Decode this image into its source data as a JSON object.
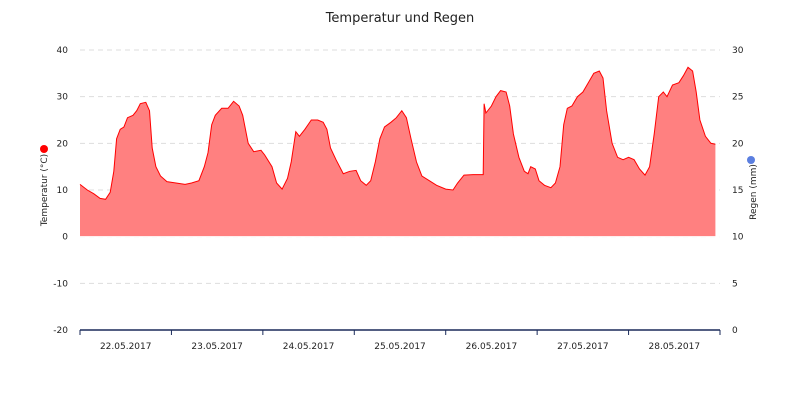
{
  "chart_data": {
    "type": "area",
    "title": "Temperatur und Regen",
    "y_left": {
      "label": "Temperatur (°C)",
      "ticks": [
        "-20",
        "-10",
        "0",
        "10",
        "20",
        "30",
        "40"
      ],
      "range": [
        -20,
        40
      ],
      "marker_color": "#ff0000"
    },
    "y_right": {
      "label": "Regen (mm)",
      "ticks": [
        "0",
        "5",
        "10",
        "15",
        "20",
        "25",
        "30"
      ],
      "range": [
        0,
        30
      ],
      "marker_color": "#5b7fe0"
    },
    "x": {
      "range": [
        0,
        7
      ],
      "labels": [
        "22.05.2017",
        "23.05.2017",
        "24.05.2017",
        "25.05.2017",
        "26.05.2017",
        "27.05.2017",
        "28.05.2017"
      ]
    },
    "series": [
      {
        "color": "#ff0000",
        "fill": "#ff8080",
        "points": [
          [
            0.0,
            11.2
          ],
          [
            0.08,
            10.0
          ],
          [
            0.15,
            9.2
          ],
          [
            0.22,
            8.2
          ],
          [
            0.28,
            8.0
          ],
          [
            0.33,
            9.5
          ],
          [
            0.37,
            14
          ],
          [
            0.4,
            21
          ],
          [
            0.44,
            23
          ],
          [
            0.48,
            23.5
          ],
          [
            0.52,
            25.5
          ],
          [
            0.58,
            26
          ],
          [
            0.62,
            27
          ],
          [
            0.66,
            28.5
          ],
          [
            0.72,
            28.8
          ],
          [
            0.76,
            27
          ],
          [
            0.79,
            19
          ],
          [
            0.83,
            15
          ],
          [
            0.88,
            13
          ],
          [
            0.95,
            11.8
          ],
          [
            1.05,
            11.5
          ],
          [
            1.15,
            11.2
          ],
          [
            1.22,
            11.5
          ],
          [
            1.3,
            12
          ],
          [
            1.36,
            15
          ],
          [
            1.4,
            18
          ],
          [
            1.44,
            24
          ],
          [
            1.48,
            26
          ],
          [
            1.55,
            27.5
          ],
          [
            1.62,
            27.5
          ],
          [
            1.68,
            29
          ],
          [
            1.74,
            28
          ],
          [
            1.78,
            26
          ],
          [
            1.84,
            20
          ],
          [
            1.9,
            18.2
          ],
          [
            1.98,
            18.5
          ],
          [
            2.02,
            17.5
          ],
          [
            2.1,
            15
          ],
          [
            2.15,
            11.5
          ],
          [
            2.21,
            10.2
          ],
          [
            2.27,
            12.5
          ],
          [
            2.31,
            16
          ],
          [
            2.36,
            22.5
          ],
          [
            2.4,
            21.5
          ],
          [
            2.46,
            23
          ],
          [
            2.53,
            25
          ],
          [
            2.6,
            25
          ],
          [
            2.66,
            24.5
          ],
          [
            2.7,
            23
          ],
          [
            2.74,
            19
          ],
          [
            2.8,
            16.5
          ],
          [
            2.88,
            13.5
          ],
          [
            2.95,
            14
          ],
          [
            3.02,
            14.2
          ],
          [
            3.07,
            12
          ],
          [
            3.13,
            11
          ],
          [
            3.18,
            12
          ],
          [
            3.23,
            16
          ],
          [
            3.28,
            21
          ],
          [
            3.33,
            23.5
          ],
          [
            3.4,
            24.5
          ],
          [
            3.46,
            25.5
          ],
          [
            3.52,
            27
          ],
          [
            3.57,
            25.5
          ],
          [
            3.62,
            21
          ],
          [
            3.68,
            16
          ],
          [
            3.74,
            13
          ],
          [
            3.82,
            12
          ],
          [
            3.9,
            11
          ],
          [
            4.0,
            10.2
          ],
          [
            4.08,
            10.0
          ],
          [
            4.13,
            11.5
          ],
          [
            4.2,
            13.2
          ],
          [
            4.3,
            13.3
          ],
          [
            4.41,
            13.3
          ],
          [
            4.42,
            28.5
          ],
          [
            4.44,
            26.5
          ],
          [
            4.5,
            28
          ],
          [
            4.55,
            30
          ],
          [
            4.6,
            31.3
          ],
          [
            4.66,
            31
          ],
          [
            4.7,
            28
          ],
          [
            4.74,
            22
          ],
          [
            4.8,
            17
          ],
          [
            4.86,
            14
          ],
          [
            4.9,
            13.5
          ],
          [
            4.93,
            15
          ],
          [
            4.98,
            14.5
          ],
          [
            5.02,
            12
          ],
          [
            5.08,
            11
          ],
          [
            5.15,
            10.5
          ],
          [
            5.2,
            11.5
          ],
          [
            5.25,
            15
          ],
          [
            5.29,
            24
          ],
          [
            5.33,
            27.5
          ],
          [
            5.38,
            28
          ],
          [
            5.44,
            30
          ],
          [
            5.5,
            31
          ],
          [
            5.56,
            33
          ],
          [
            5.62,
            35
          ],
          [
            5.68,
            35.5
          ],
          [
            5.72,
            34
          ],
          [
            5.76,
            27
          ],
          [
            5.82,
            20
          ],
          [
            5.88,
            17
          ],
          [
            5.94,
            16.5
          ],
          [
            6.0,
            17
          ],
          [
            6.06,
            16.5
          ],
          [
            6.12,
            14.5
          ],
          [
            6.18,
            13.2
          ],
          [
            6.23,
            15
          ],
          [
            6.28,
            22
          ],
          [
            6.33,
            30
          ],
          [
            6.38,
            31
          ],
          [
            6.42,
            30
          ],
          [
            6.48,
            32.5
          ],
          [
            6.55,
            33
          ],
          [
            6.6,
            34.5
          ],
          [
            6.65,
            36.3
          ],
          [
            6.7,
            35.5
          ],
          [
            6.74,
            31
          ],
          [
            6.78,
            25
          ],
          [
            6.84,
            21.5
          ],
          [
            6.9,
            20
          ],
          [
            6.95,
            19.8
          ]
        ]
      }
    ],
    "grid": "horizontal dashed",
    "legend": "none"
  }
}
